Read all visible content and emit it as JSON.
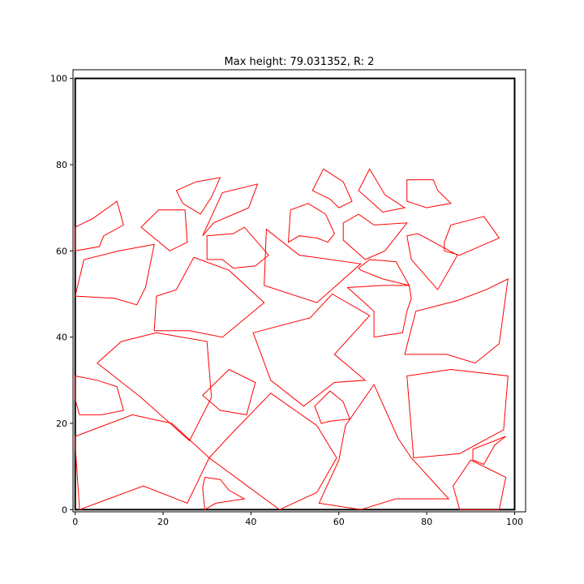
{
  "chart_data": {
    "type": "polygon-packing",
    "title": "Max height: 79.031352, R: 2",
    "xlabel": "",
    "ylabel": "",
    "xlim": [
      -0.5,
      102.5
    ],
    "ylim": [
      -0.5,
      102
    ],
    "x_ticks": [
      0,
      20,
      40,
      60,
      80,
      100
    ],
    "y_ticks": [
      0,
      20,
      40,
      60,
      80,
      100
    ],
    "grid": false,
    "container": {
      "x0": 0,
      "x1": 100,
      "y0": 0,
      "y1": 100,
      "color": "#000000"
    },
    "polygon_color": "#ff0000",
    "polygons": [
      [
        [
          0,
          65.5
        ],
        [
          4,
          67.5
        ],
        [
          9.5,
          71.5
        ],
        [
          11,
          66
        ],
        [
          6.5,
          63.5
        ],
        [
          5.5,
          61
        ],
        [
          0,
          60
        ]
      ],
      [
        [
          0,
          49.5
        ],
        [
          9,
          49
        ],
        [
          14,
          47.5
        ],
        [
          16,
          51.5
        ],
        [
          18,
          61.5
        ],
        [
          10,
          60
        ],
        [
          2,
          58
        ]
      ],
      [
        [
          15,
          65.5
        ],
        [
          19,
          69.5
        ],
        [
          25,
          69.5
        ],
        [
          25.5,
          62
        ],
        [
          21.5,
          60
        ]
      ],
      [
        [
          23,
          74
        ],
        [
          27.5,
          76
        ],
        [
          33,
          77
        ],
        [
          31,
          72.5
        ],
        [
          28.5,
          68.5
        ],
        [
          24.5,
          71
        ]
      ],
      [
        [
          29,
          63.5
        ],
        [
          31.5,
          66.5
        ],
        [
          39.5,
          70
        ],
        [
          41.5,
          75.5
        ],
        [
          33.5,
          73.5
        ]
      ],
      [
        [
          30,
          63.5
        ],
        [
          36,
          64
        ],
        [
          38.5,
          65.5
        ],
        [
          44,
          59
        ],
        [
          41,
          56.5
        ],
        [
          36,
          56
        ],
        [
          33.5,
          58
        ],
        [
          30,
          58
        ]
      ],
      [
        [
          18.5,
          49.5
        ],
        [
          23,
          51
        ],
        [
          27,
          58.5
        ],
        [
          35,
          55.5
        ],
        [
          43,
          48
        ],
        [
          33.5,
          40
        ],
        [
          26,
          41.5
        ],
        [
          18,
          41.5
        ]
      ],
      [
        [
          5,
          34
        ],
        [
          10.5,
          39
        ],
        [
          18.5,
          41
        ],
        [
          30,
          39
        ],
        [
          31,
          26
        ],
        [
          26,
          16
        ],
        [
          15,
          26
        ]
      ],
      [
        [
          0,
          31
        ],
        [
          5,
          30
        ],
        [
          9.5,
          28.5
        ],
        [
          11,
          23
        ],
        [
          6,
          22
        ],
        [
          1,
          22
        ],
        [
          0,
          25.5
        ]
      ],
      [
        [
          0,
          17
        ],
        [
          13,
          22
        ],
        [
          22,
          20
        ],
        [
          30.5,
          12
        ],
        [
          25.5,
          1.5
        ],
        [
          15.5,
          5.5
        ],
        [
          1,
          0
        ],
        [
          0,
          15
        ]
      ],
      [
        [
          29,
          26.5
        ],
        [
          35,
          32.5
        ],
        [
          41,
          29.5
        ],
        [
          39,
          22
        ],
        [
          33,
          23
        ]
      ],
      [
        [
          30.5,
          12
        ],
        [
          35,
          17
        ],
        [
          44.5,
          27
        ],
        [
          55,
          19.5
        ],
        [
          59.5,
          12
        ],
        [
          55,
          4
        ],
        [
          46.5,
          0
        ]
      ],
      [
        [
          29.5,
          7.5
        ],
        [
          33,
          7
        ],
        [
          35,
          4.5
        ],
        [
          38.5,
          2.5
        ],
        [
          32,
          1.5
        ],
        [
          29.5,
          0
        ],
        [
          29,
          5
        ]
      ],
      [
        [
          40.5,
          41
        ],
        [
          53.5,
          44.5
        ],
        [
          58.5,
          50
        ],
        [
          67,
          45
        ],
        [
          59,
          36
        ],
        [
          66,
          30
        ],
        [
          59,
          29.5
        ],
        [
          52,
          24
        ],
        [
          44.5,
          30
        ]
      ],
      [
        [
          43.5,
          65
        ],
        [
          51,
          59
        ],
        [
          65,
          57
        ],
        [
          55,
          48
        ],
        [
          43,
          52
        ]
      ],
      [
        [
          48.5,
          62
        ],
        [
          49,
          69.5
        ],
        [
          53,
          71
        ],
        [
          57,
          68.5
        ],
        [
          59,
          64
        ],
        [
          57.5,
          62
        ],
        [
          55,
          63
        ],
        [
          51,
          63.5
        ]
      ],
      [
        [
          54,
          74
        ],
        [
          56.5,
          79
        ],
        [
          61,
          76
        ],
        [
          63,
          71.5
        ],
        [
          60,
          70
        ],
        [
          58,
          72
        ]
      ],
      [
        [
          61,
          66.5
        ],
        [
          64.5,
          68.5
        ],
        [
          68,
          66
        ],
        [
          75.5,
          66.5
        ],
        [
          70.5,
          60
        ],
        [
          66,
          58
        ],
        [
          61,
          62.5
        ]
      ],
      [
        [
          64.5,
          74
        ],
        [
          67,
          79
        ],
        [
          70.5,
          73
        ],
        [
          75,
          70
        ],
        [
          70,
          69
        ]
      ],
      [
        [
          75.5,
          76.5
        ],
        [
          81.5,
          76.5
        ],
        [
          82.5,
          74
        ],
        [
          85.5,
          71
        ],
        [
          82.5,
          70.5
        ],
        [
          80,
          70
        ],
        [
          75.5,
          71.5
        ]
      ],
      [
        [
          64.5,
          56
        ],
        [
          67,
          58
        ],
        [
          73,
          57.5
        ],
        [
          76,
          52
        ],
        [
          70,
          53.5
        ],
        [
          65,
          55.5
        ]
      ],
      [
        [
          62,
          51.5
        ],
        [
          70,
          52
        ],
        [
          76,
          52
        ],
        [
          76.5,
          49
        ],
        [
          75.5,
          46
        ],
        [
          74.5,
          41
        ],
        [
          71,
          40.5
        ],
        [
          68,
          40
        ],
        [
          68,
          46
        ]
      ],
      [
        [
          75.5,
          63.5
        ],
        [
          78,
          64
        ],
        [
          87,
          59
        ],
        [
          82.5,
          51
        ],
        [
          76.5,
          58
        ]
      ],
      [
        [
          84,
          62
        ],
        [
          85.5,
          66
        ],
        [
          93,
          68
        ],
        [
          96.5,
          63
        ],
        [
          87.5,
          59
        ],
        [
          84,
          60
        ]
      ],
      [
        [
          75,
          36
        ],
        [
          84.5,
          36
        ],
        [
          91,
          34
        ],
        [
          96.5,
          38.5
        ],
        [
          98.5,
          53.5
        ],
        [
          93.5,
          51
        ],
        [
          87,
          48.5
        ],
        [
          77.5,
          46
        ]
      ],
      [
        [
          75.5,
          31
        ],
        [
          85.5,
          32.5
        ],
        [
          98.5,
          31
        ],
        [
          97.5,
          18.5
        ],
        [
          87.5,
          13
        ],
        [
          77,
          12
        ]
      ],
      [
        [
          54.5,
          24
        ],
        [
          58,
          27.5
        ],
        [
          61,
          25
        ],
        [
          62.5,
          21
        ],
        [
          58,
          20.5
        ],
        [
          56,
          20
        ]
      ],
      [
        [
          55.5,
          1.5
        ],
        [
          60,
          11.5
        ],
        [
          61.5,
          19.5
        ],
        [
          68,
          29
        ],
        [
          73.5,
          16.5
        ],
        [
          76.5,
          12
        ],
        [
          85,
          2.5
        ],
        [
          73,
          2.5
        ],
        [
          65,
          0
        ]
      ],
      [
        [
          90.5,
          14
        ],
        [
          98,
          17
        ],
        [
          95.5,
          15
        ],
        [
          93,
          10.5
        ],
        [
          90.5,
          11.5
        ]
      ],
      [
        [
          86,
          5.5
        ],
        [
          90,
          11.5
        ],
        [
          98,
          7.5
        ],
        [
          96.5,
          0
        ],
        [
          87.5,
          0
        ]
      ]
    ]
  }
}
